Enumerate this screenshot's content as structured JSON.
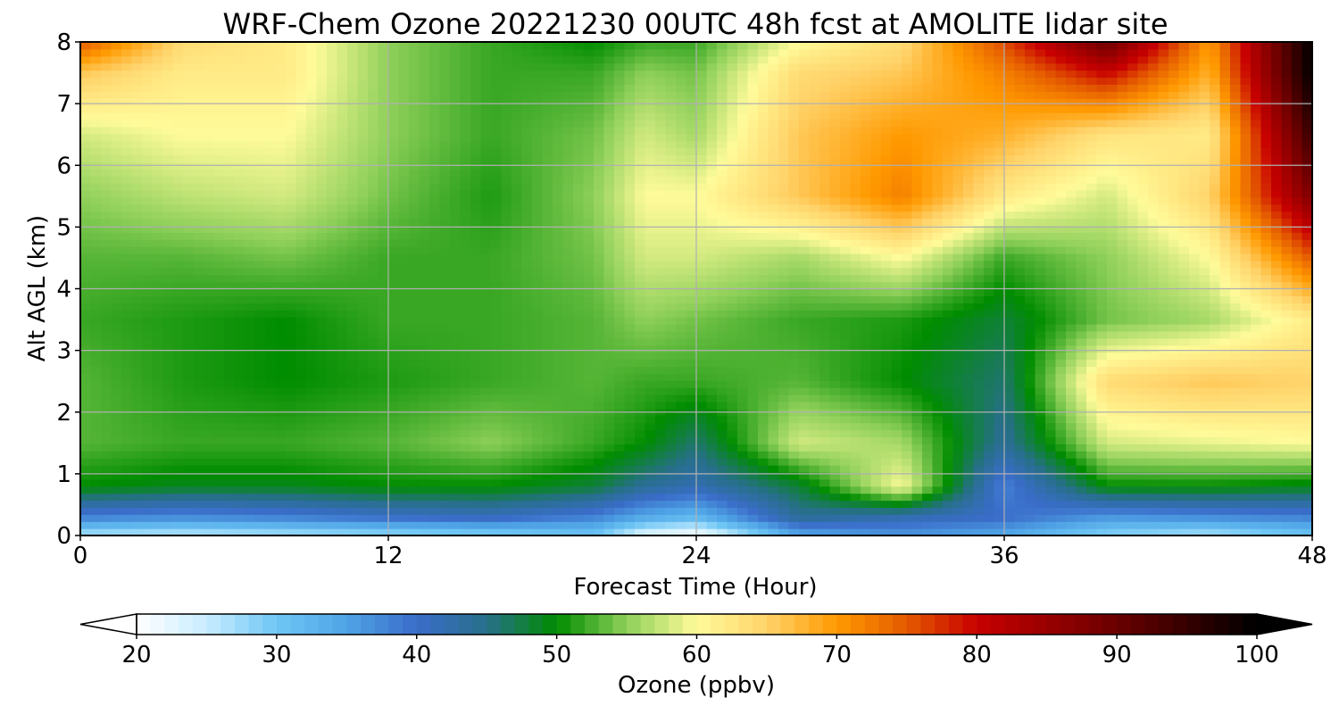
{
  "chart_data": {
    "type": "heatmap",
    "title": "WRF-Chem Ozone  20221230 00UTC 48h fcst at AMOLITE lidar site",
    "xlabel": "Forecast Time (Hour)",
    "ylabel": "Alt AGL (km)",
    "xlim": [
      0,
      48
    ],
    "ylim": [
      0,
      8
    ],
    "x_ticks": [
      "0",
      "12",
      "24",
      "36",
      "48"
    ],
    "y_ticks": [
      "0",
      "1",
      "2",
      "3",
      "4",
      "5",
      "6",
      "7",
      "8"
    ],
    "grid": true,
    "x_hours": [
      0,
      4,
      8,
      12,
      16,
      20,
      22,
      24,
      28,
      32,
      36,
      40,
      44,
      48
    ],
    "y_km": [
      0,
      0.3,
      0.8,
      1.5,
      2.5,
      3.5,
      4.5,
      5.5,
      6.5,
      7.5,
      8
    ],
    "ozone_ppbv": [
      [
        26,
        25,
        26,
        27,
        28,
        30,
        22,
        20,
        34,
        36,
        34,
        28,
        26,
        30
      ],
      [
        38,
        37,
        38,
        40,
        41,
        38,
        34,
        32,
        44,
        42,
        40,
        36,
        37,
        38
      ],
      [
        50,
        49,
        49,
        50,
        50,
        48,
        44,
        42,
        48,
        60,
        38,
        50,
        50,
        49
      ],
      [
        53,
        52,
        52,
        53,
        55,
        52,
        50,
        46,
        58,
        56,
        44,
        58,
        59,
        60
      ],
      [
        53,
        51,
        50,
        51,
        52,
        53,
        52,
        52,
        53,
        50,
        46,
        64,
        66,
        65
      ],
      [
        52,
        51,
        50,
        52,
        52,
        53,
        55,
        54,
        52,
        51,
        48,
        54,
        56,
        62
      ],
      [
        53,
        53,
        54,
        52,
        52,
        54,
        58,
        58,
        56,
        60,
        52,
        55,
        60,
        75
      ],
      [
        55,
        57,
        58,
        54,
        51,
        55,
        60,
        60,
        66,
        72,
        62,
        58,
        65,
        88
      ],
      [
        58,
        60,
        60,
        55,
        52,
        54,
        58,
        56,
        66,
        70,
        68,
        63,
        62,
        95
      ],
      [
        66,
        62,
        62,
        55,
        52,
        52,
        55,
        54,
        64,
        66,
        72,
        80,
        68,
        100
      ],
      [
        75,
        64,
        62,
        55,
        52,
        50,
        52,
        52,
        60,
        64,
        76,
        90,
        70,
        100
      ]
    ],
    "colorbar": {
      "label": "Ozone  (ppbv)",
      "ticks": [
        "20",
        "30",
        "40",
        "50",
        "60",
        "70",
        "80",
        "90",
        "100"
      ],
      "range": [
        20,
        100
      ],
      "extend": "both",
      "stops": [
        {
          "v": 20,
          "c": "#ffffff"
        },
        {
          "v": 25,
          "c": "#c8ecff"
        },
        {
          "v": 30,
          "c": "#6ec6f4"
        },
        {
          "v": 35,
          "c": "#4fa3e6"
        },
        {
          "v": 40,
          "c": "#3a6dc9"
        },
        {
          "v": 45,
          "c": "#276f8a"
        },
        {
          "v": 50,
          "c": "#008c00"
        },
        {
          "v": 55,
          "c": "#8fd05a"
        },
        {
          "v": 60,
          "c": "#fffb9a"
        },
        {
          "v": 65,
          "c": "#ffd36a"
        },
        {
          "v": 70,
          "c": "#ff9900"
        },
        {
          "v": 75,
          "c": "#e45a00"
        },
        {
          "v": 80,
          "c": "#c80000"
        },
        {
          "v": 90,
          "c": "#6a0000"
        },
        {
          "v": 100,
          "c": "#000000"
        }
      ]
    }
  }
}
